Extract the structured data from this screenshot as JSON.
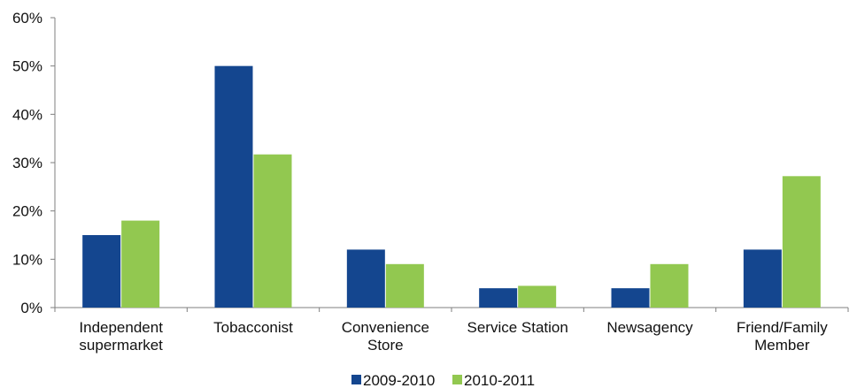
{
  "chart_data": {
    "type": "bar",
    "title": "",
    "xlabel": "",
    "ylabel": "",
    "categories": [
      [
        "Independent",
        "supermarket"
      ],
      [
        "Tobacconist"
      ],
      [
        "Convenience",
        "Store"
      ],
      [
        "Service Station"
      ],
      [
        "Newsagency"
      ],
      [
        "Friend/Family",
        "Member"
      ]
    ],
    "series": [
      {
        "name": "2009-2010",
        "color": "#14468f",
        "values": [
          15,
          50,
          12,
          4,
          4,
          12
        ]
      },
      {
        "name": "2010-2011",
        "color": "#92c850",
        "values": [
          18,
          31.7,
          9,
          4.5,
          9,
          27.2
        ]
      }
    ],
    "ylim": [
      0,
      60
    ],
    "yticks": [
      {
        "value": 0,
        "label": "0%"
      },
      {
        "value": 10,
        "label": "10%"
      },
      {
        "value": 20,
        "label": "20%"
      },
      {
        "value": 30,
        "label": "30%"
      },
      {
        "value": 40,
        "label": "40%"
      },
      {
        "value": 50,
        "label": "50%"
      },
      {
        "value": 60,
        "label": "60%"
      }
    ],
    "grid": false,
    "legend_position": "bottom-center"
  }
}
